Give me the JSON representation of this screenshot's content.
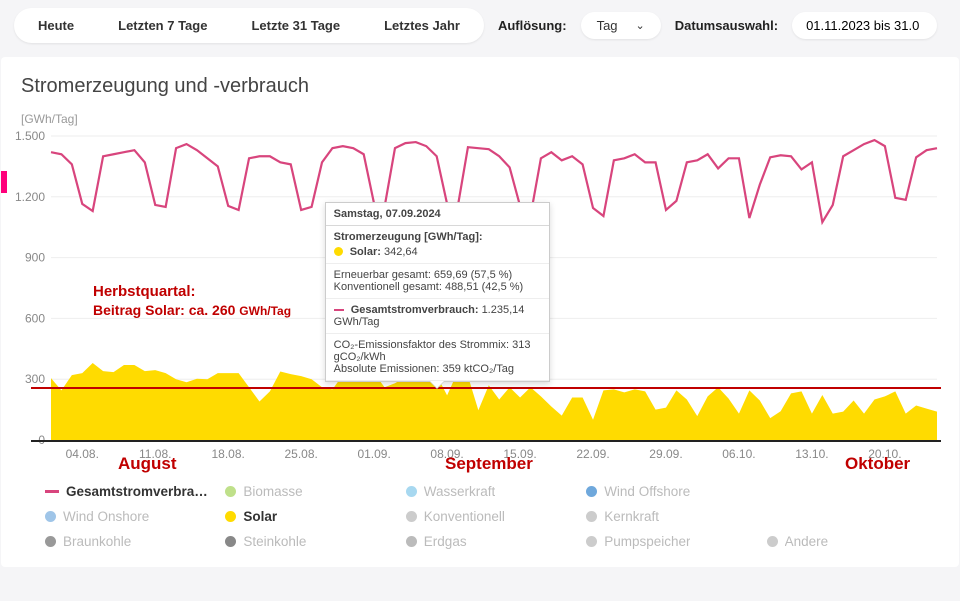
{
  "controls": {
    "tabs": [
      "Heute",
      "Letzten 7 Tage",
      "Letzte 31 Tage",
      "Letztes Jahr"
    ],
    "resolution_label": "Auflösung:",
    "resolution_value": "Tag",
    "date_label": "Datumsauswahl:",
    "date_value": "01.11.2023 bis 31.0"
  },
  "chart": {
    "title": "Stromerzeugung und -verbrauch",
    "y_unit": "[GWh/Tag]",
    "type": "area+line",
    "background_color": "#ffffff",
    "grid_color": "#eeeeee",
    "axis_color": "#666666",
    "ylim": [
      0,
      1500
    ],
    "yticks": [
      0,
      300,
      600,
      900,
      "1.200",
      "1.500"
    ],
    "ytick_values": [
      0,
      300,
      600,
      900,
      1200,
      1500
    ],
    "xlabels": [
      "04.08.",
      "11.08.",
      "18.08.",
      "25.08.",
      "01.09.",
      "08.09.",
      "15.09.",
      "22.09.",
      "29.09.",
      "06.10.",
      "13.10.",
      "20.10."
    ],
    "line_color": "#d8457d",
    "area_color": "#ffdb00",
    "ref_line_y": 260,
    "ref_line_color": "#c00000",
    "zero_line_color": "#222222",
    "demand": [
      1420,
      1410,
      1360,
      1165,
      1130,
      1400,
      1410,
      1420,
      1430,
      1370,
      1160,
      1150,
      1440,
      1460,
      1430,
      1390,
      1350,
      1155,
      1135,
      1390,
      1400,
      1400,
      1370,
      1360,
      1135,
      1150,
      1370,
      1440,
      1450,
      1440,
      1410,
      1165,
      1150,
      1440,
      1465,
      1470,
      1450,
      1400,
      1165,
      1145,
      1445,
      1440,
      1435,
      1400,
      1345,
      1155,
      1105,
      1390,
      1420,
      1380,
      1400,
      1360,
      1145,
      1105,
      1380,
      1390,
      1410,
      1370,
      1370,
      1135,
      1180,
      1370,
      1380,
      1410,
      1340,
      1390,
      1390,
      1095,
      1260,
      1395,
      1405,
      1400,
      1335,
      1370,
      1075,
      1160,
      1400,
      1430,
      1460,
      1480,
      1450,
      1195,
      1185,
      1395,
      1430,
      1440
    ],
    "solar": [
      305,
      245,
      320,
      330,
      380,
      340,
      335,
      370,
      370,
      340,
      345,
      330,
      300,
      285,
      302,
      300,
      330,
      330,
      330,
      260,
      190,
      240,
      338,
      325,
      315,
      300,
      260,
      250,
      320,
      300,
      330,
      330,
      260,
      280,
      310,
      315,
      340,
      320,
      220,
      335,
      315,
      147,
      270,
      200,
      260,
      210,
      260,
      215,
      165,
      120,
      210,
      210,
      100,
      245,
      250,
      235,
      250,
      240,
      150,
      160,
      245,
      200,
      118,
      215,
      260,
      205,
      130,
      245,
      195,
      108,
      142,
      230,
      240,
      130,
      222,
      130,
      140,
      195,
      130,
      200,
      215,
      240,
      130,
      170,
      155,
      140
    ]
  },
  "overlay": {
    "line1": "Herbstquartal:",
    "line2_a": "Beitrag Solar:  ca. 260",
    "line2_b": "GWh/Tag",
    "months": [
      "August",
      "September",
      "Oktober"
    ]
  },
  "tooltip": {
    "date": "Samstag, 07.09.2024",
    "section_title": "Stromerzeugung [GWh/Tag]:",
    "solar_label": "Solar:",
    "solar_value": "342,64",
    "solar_color": "#ffdb00",
    "renewable_line": "Erneuerbar gesamt: 659,69 (57,5 %)",
    "conventional_line": "Konventionell gesamt: 488,51 (42,5 %)",
    "total_label": "Gesamtstromverbrauch:",
    "total_value": "1.235,14 GWh/Tag",
    "total_color": "#d8457d",
    "co2_factor": "CO₂-Emissionsfaktor des Strommix: 313 gCO₂/kWh",
    "co2_abs": "Absolute Emissionen: 359 ktCO₂/Tag"
  },
  "legend": {
    "active_color": "#333333",
    "inactive_color": "#bbbbbb",
    "items": [
      {
        "label": "Gesamtstromverbra…",
        "type": "dash",
        "color": "#d8457d",
        "active": true
      },
      {
        "label": "Biomasse",
        "type": "dot",
        "color": "#bfe08a",
        "active": false
      },
      {
        "label": "Wasserkraft",
        "type": "dot",
        "color": "#a7d8f0",
        "active": false
      },
      {
        "label": "Wind Offshore",
        "type": "dot",
        "color": "#6fa8dc",
        "active": false
      },
      {
        "label": "",
        "type": "none"
      },
      {
        "label": "Wind Onshore",
        "type": "dot",
        "color": "#9fc5e8",
        "active": false
      },
      {
        "label": "Solar",
        "type": "dot",
        "color": "#ffdb00",
        "active": true
      },
      {
        "label": "Konventionell",
        "type": "dot",
        "color": "#cccccc",
        "active": false
      },
      {
        "label": "Kernkraft",
        "type": "dot",
        "color": "#cccccc",
        "active": false
      },
      {
        "label": "",
        "type": "none"
      },
      {
        "label": "Braunkohle",
        "type": "dot",
        "color": "#999999",
        "active": false
      },
      {
        "label": "Steinkohle",
        "type": "dot",
        "color": "#888888",
        "active": false
      },
      {
        "label": "Erdgas",
        "type": "dot",
        "color": "#bbbbbb",
        "active": false
      },
      {
        "label": "Pumpspeicher",
        "type": "dot",
        "color": "#cccccc",
        "active": false
      },
      {
        "label": "Andere",
        "type": "dot",
        "color": "#cccccc",
        "active": false
      }
    ]
  }
}
